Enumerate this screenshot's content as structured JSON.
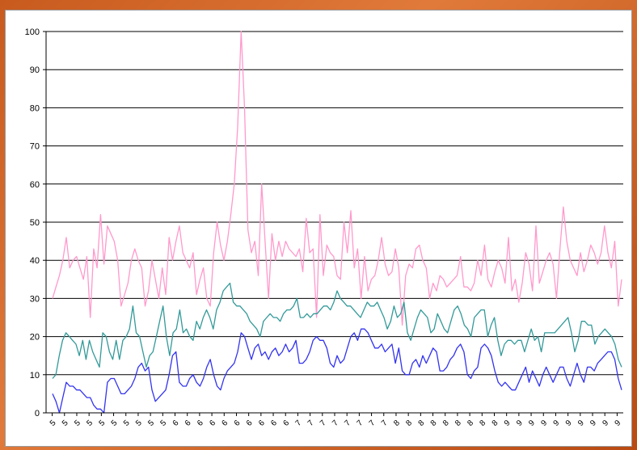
{
  "chart_data": {
    "type": "line",
    "title": "",
    "xlabel": "",
    "ylabel": "",
    "ylim": [
      0,
      100
    ],
    "yticks": [
      0,
      10,
      20,
      30,
      40,
      50,
      60,
      70,
      80,
      90,
      100
    ],
    "grid": true,
    "legend": "none",
    "xtick_labels": [
      "5",
      "5",
      "5",
      "5",
      "5",
      "5",
      "5",
      "5",
      "5",
      "5",
      "6",
      "6",
      "6",
      "6",
      "6",
      "6",
      "6",
      "6",
      "6",
      "6",
      "7",
      "7",
      "7",
      "7",
      "7",
      "7",
      "7",
      "7",
      "8",
      "8",
      "8",
      "8",
      "8",
      "8",
      "8",
      "8",
      "8",
      "9",
      "9",
      "9",
      "9",
      "9",
      "9",
      "9",
      "9",
      "9",
      "9"
    ],
    "series": [
      {
        "color": "#ff99cc",
        "values": [
          30,
          33,
          36,
          40,
          46,
          38,
          40,
          41,
          38,
          35,
          41,
          25,
          43,
          38,
          52,
          39,
          49,
          47,
          45,
          40,
          28,
          31,
          34,
          40,
          43,
          40,
          38,
          28,
          32,
          40,
          35,
          30,
          38,
          31,
          46,
          40,
          45,
          49,
          42,
          40,
          38,
          42,
          31,
          35,
          38,
          30,
          28,
          42,
          50,
          44,
          40,
          45,
          52,
          60,
          75,
          100,
          80,
          48,
          42,
          45,
          36,
          60,
          45,
          30,
          47,
          40,
          45,
          41,
          45,
          43,
          42,
          41,
          43,
          37,
          51,
          42,
          43,
          25,
          52,
          36,
          44,
          42,
          41,
          36,
          35,
          50,
          42,
          53,
          38,
          43,
          30,
          41,
          32,
          35,
          36,
          40,
          46,
          39,
          36,
          37,
          43,
          38,
          23,
          36,
          39,
          38,
          43,
          44,
          40,
          38,
          30,
          34,
          32,
          36,
          35,
          33,
          34,
          35,
          36,
          41,
          33,
          33,
          32,
          34,
          40,
          36,
          44,
          35,
          33,
          37,
          40,
          38,
          34,
          46,
          32,
          35,
          29,
          34,
          42,
          39,
          32,
          49,
          34,
          37,
          40,
          42,
          39,
          30,
          43,
          54,
          45,
          40,
          38,
          36,
          42,
          37,
          40,
          44,
          42,
          39,
          42,
          49,
          42,
          38,
          45,
          28,
          35
        ]
      },
      {
        "color": "#339999",
        "values": [
          9,
          10,
          15,
          19,
          21,
          20,
          19,
          18,
          15,
          19,
          14,
          19,
          16,
          14,
          12,
          21,
          20,
          16,
          14,
          19,
          14,
          19,
          20,
          22,
          28,
          21,
          20,
          16,
          12,
          15,
          16,
          20,
          24,
          28,
          20,
          15,
          21,
          22,
          27,
          21,
          22,
          20,
          19,
          24,
          22,
          25,
          27,
          25,
          22,
          27,
          29,
          32,
          33,
          34,
          29,
          28,
          28,
          27,
          26,
          24,
          23,
          22,
          20,
          24,
          25,
          26,
          25,
          25,
          24,
          26,
          27,
          27,
          28,
          30,
          25,
          25,
          26,
          25,
          26,
          26,
          27,
          28,
          28,
          27,
          29,
          32,
          30,
          29,
          28,
          28,
          27,
          26,
          25,
          27,
          29,
          28,
          28,
          29,
          27,
          25,
          22,
          24,
          28,
          25,
          26,
          29,
          21,
          19,
          22,
          25,
          27,
          26,
          25,
          21,
          22,
          26,
          24,
          22,
          21,
          24,
          27,
          28,
          26,
          23,
          22,
          20,
          25,
          26,
          27,
          27,
          20,
          23,
          25,
          19,
          15,
          18,
          19,
          19,
          18,
          19,
          19,
          16,
          19,
          22,
          19,
          20,
          16,
          21,
          21,
          21,
          21,
          22,
          23,
          24,
          25,
          21,
          16,
          19,
          24,
          24,
          23,
          23,
          18,
          20,
          21,
          22,
          21,
          20,
          18,
          14,
          12
        ]
      },
      {
        "color": "#3333ee",
        "values": [
          5,
          3,
          0,
          4,
          8,
          7,
          7,
          6,
          6,
          5,
          4,
          4,
          2,
          1,
          1,
          0,
          8,
          9,
          9,
          7,
          5,
          5,
          6,
          7,
          9,
          12,
          13,
          11,
          12,
          6,
          3,
          4,
          5,
          6,
          10,
          15,
          16,
          8,
          7,
          7,
          9,
          10,
          8,
          7,
          9,
          12,
          14,
          10,
          7,
          6,
          9,
          11,
          12,
          13,
          16,
          21,
          20,
          17,
          14,
          17,
          18,
          15,
          16,
          14,
          16,
          17,
          15,
          16,
          18,
          16,
          17,
          19,
          13,
          13,
          14,
          16,
          19,
          20,
          19,
          19,
          17,
          13,
          12,
          15,
          13,
          14,
          17,
          20,
          21,
          19,
          22,
          22,
          21,
          19,
          17,
          17,
          18,
          16,
          17,
          18,
          13,
          17,
          11,
          10,
          10,
          13,
          14,
          12,
          15,
          13,
          15,
          17,
          16,
          11,
          11,
          12,
          14,
          15,
          17,
          18,
          16,
          10,
          9,
          11,
          12,
          17,
          18,
          17,
          15,
          11,
          8,
          7,
          8,
          7,
          6,
          6,
          8,
          10,
          12,
          8,
          11,
          9,
          7,
          10,
          12,
          10,
          8,
          10,
          12,
          12,
          9,
          7,
          10,
          13,
          10,
          8,
          12,
          12,
          11,
          13,
          14,
          15,
          16,
          16,
          14,
          9,
          6
        ]
      }
    ]
  }
}
